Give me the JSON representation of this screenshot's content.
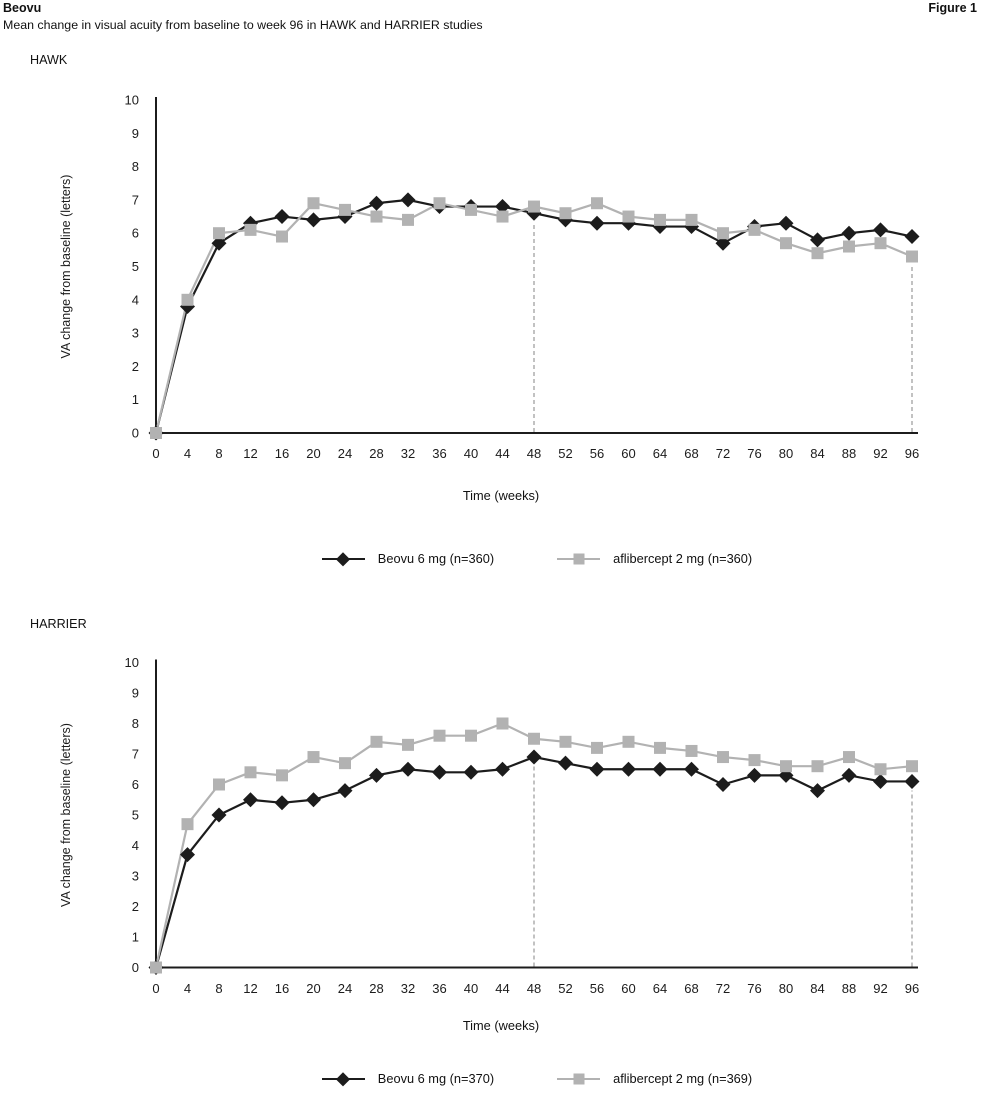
{
  "header": {
    "title": "Beovu",
    "figure_label": "Figure 1",
    "subtitle": "Mean change in visual acuity from baseline to week 96 in HAWK and HARRIER studies"
  },
  "colors": {
    "axis": "#1c1c1c",
    "beovu_series": "#1c1c1c",
    "aflibercept_series": "#b2b2b2",
    "dashed_reference_line": "#a9a9a9"
  },
  "chart_data": [
    {
      "type": "line",
      "title": "HAWK",
      "xlabel": "Time (weeks)",
      "ylabel": "VA change from baseline (letters)",
      "ylim": [
        0,
        10
      ],
      "yticks": [
        0,
        1,
        2,
        3,
        4,
        5,
        6,
        7,
        8,
        9,
        10
      ],
      "x": [
        0,
        4,
        8,
        12,
        16,
        20,
        24,
        28,
        32,
        36,
        40,
        44,
        48,
        52,
        56,
        60,
        64,
        68,
        72,
        76,
        80,
        84,
        88,
        92,
        96
      ],
      "dashed_vlines": [
        48,
        96
      ],
      "grid": false,
      "legend_position": "bottom",
      "series": [
        {
          "name": "Beovu 6 mg (n=360)",
          "marker": "diamond",
          "color": "#1c1c1c",
          "values": [
            0,
            3.8,
            5.7,
            6.3,
            6.5,
            6.4,
            6.5,
            6.9,
            7.0,
            6.8,
            6.8,
            6.8,
            6.6,
            6.4,
            6.3,
            6.3,
            6.2,
            6.2,
            5.7,
            6.2,
            6.3,
            5.8,
            6.0,
            6.1,
            5.9
          ]
        },
        {
          "name": "aflibercept 2 mg (n=360)",
          "marker": "square",
          "color": "#b2b2b2",
          "values": [
            0,
            4.0,
            6.0,
            6.1,
            5.9,
            6.9,
            6.7,
            6.5,
            6.4,
            6.9,
            6.7,
            6.5,
            6.8,
            6.6,
            6.9,
            6.5,
            6.4,
            6.4,
            6.0,
            6.1,
            5.7,
            5.4,
            5.6,
            5.7,
            5.3
          ]
        }
      ]
    },
    {
      "type": "line",
      "title": "HARRIER",
      "xlabel": "Time (weeks)",
      "ylabel": "VA change from baseline (letters)",
      "ylim": [
        0,
        10
      ],
      "yticks": [
        0,
        1,
        2,
        3,
        4,
        5,
        6,
        7,
        8,
        9,
        10
      ],
      "x": [
        0,
        4,
        8,
        12,
        16,
        20,
        24,
        28,
        32,
        36,
        40,
        44,
        48,
        52,
        56,
        60,
        64,
        68,
        72,
        76,
        80,
        84,
        88,
        92,
        96
      ],
      "dashed_vlines": [
        48,
        96
      ],
      "grid": false,
      "legend_position": "bottom",
      "series": [
        {
          "name": "Beovu 6 mg (n=370)",
          "marker": "diamond",
          "color": "#1c1c1c",
          "values": [
            0,
            3.7,
            5.0,
            5.5,
            5.4,
            5.5,
            5.8,
            6.3,
            6.5,
            6.4,
            6.4,
            6.5,
            6.9,
            6.7,
            6.5,
            6.5,
            6.5,
            6.5,
            6.0,
            6.3,
            6.3,
            5.8,
            6.3,
            6.1,
            6.1
          ]
        },
        {
          "name": "aflibercept 2 mg (n=369)",
          "marker": "square",
          "color": "#b2b2b2",
          "values": [
            0,
            4.7,
            6.0,
            6.4,
            6.3,
            6.9,
            6.7,
            7.4,
            7.3,
            7.6,
            7.6,
            8.0,
            7.5,
            7.4,
            7.2,
            7.4,
            7.2,
            7.1,
            6.9,
            6.8,
            6.6,
            6.6,
            6.9,
            6.5,
            6.6
          ]
        }
      ]
    }
  ]
}
